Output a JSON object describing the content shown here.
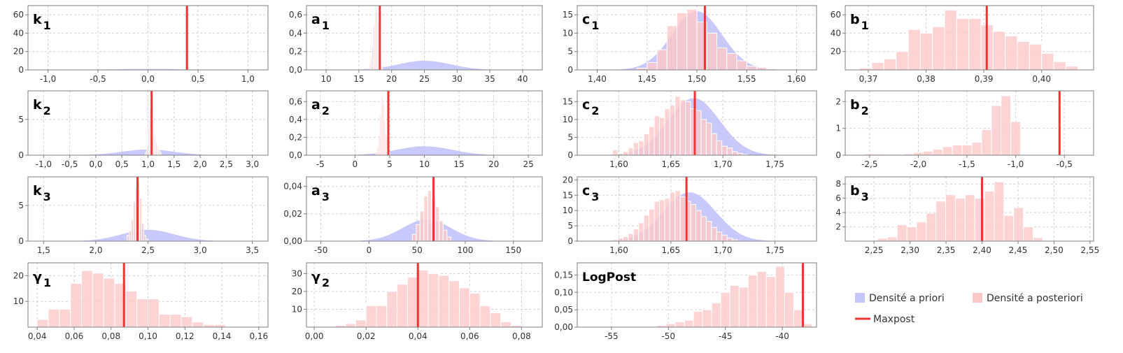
{
  "legend": {
    "prior_label": "Densité a priori",
    "posterior_label": "Densité a posteriori",
    "maxpost_label": "Maxpost",
    "colors": {
      "prior": "#c5c5fb",
      "posterior": "#fcc9c9",
      "maxpost": "#ee3333"
    }
  },
  "chart_data": [
    {
      "type": "bar",
      "title": "k",
      "subscript": "1",
      "xlim": [
        -1.2,
        1.2
      ],
      "ylim": [
        0,
        70
      ],
      "xticks": [
        -1.0,
        -0.5,
        0.0,
        0.5,
        1.0
      ],
      "xtick_labels": [
        "-1,0",
        "-0,5",
        "0,0",
        "0,5",
        "1,0"
      ],
      "yticks": [
        0,
        20,
        40,
        60
      ],
      "ytick_labels": [
        "0",
        "20",
        "40",
        "60"
      ],
      "prior": {
        "mean": 0.0,
        "sd": 0.4
      },
      "posterior": {
        "bin_start": 0.384,
        "bin_width": 0.004,
        "values": [
          120
        ]
      },
      "maxpost": 0.39
    },
    {
      "type": "bar",
      "title": "a",
      "subscript": "1",
      "xlim": [
        7,
        43
      ],
      "ylim": [
        0,
        0.7
      ],
      "xticks": [
        10,
        15,
        20,
        25,
        30,
        35,
        40
      ],
      "xtick_labels": [
        "10",
        "15",
        "20",
        "25",
        "30",
        "35",
        "40"
      ],
      "yticks": [
        0,
        0.2,
        0.4,
        0.6
      ],
      "ytick_labels": [
        "0,0",
        "0,2",
        "0,4",
        "0,6"
      ],
      "prior": {
        "mean": 25,
        "sd": 4
      },
      "posterior": {
        "bin_start": 16.6,
        "bin_width": 0.2,
        "values": [
          0.05,
          0.12,
          0.25,
          0.48,
          0.63,
          0.66,
          0.52,
          0.3,
          0.12,
          0.04
        ]
      },
      "maxpost": 18.2
    },
    {
      "type": "bar",
      "title": "c",
      "subscript": "1",
      "xlim": [
        1.38,
        1.62
      ],
      "ylim": [
        0,
        17.5
      ],
      "xticks": [
        1.4,
        1.45,
        1.5,
        1.55,
        1.6
      ],
      "xtick_labels": [
        "1,40",
        "1,45",
        "1,50",
        "1,55",
        "1,60"
      ],
      "yticks": [
        0,
        5,
        10,
        15
      ],
      "ytick_labels": [
        "0",
        "5",
        "10",
        "15"
      ],
      "prior": {
        "mean": 1.5,
        "sd": 0.025
      },
      "posterior": {
        "bin_start": 1.44,
        "bin_width": 0.01,
        "values": [
          0.5,
          2.0,
          5.5,
          12.0,
          15.5,
          16.5,
          13.0,
          10.0,
          6.0,
          4.5,
          2.5,
          1.0,
          0.7,
          0.3
        ]
      },
      "maxpost": 1.508
    },
    {
      "type": "bar",
      "title": "b",
      "subscript": "1",
      "xlim": [
        0.366,
        0.409
      ],
      "ylim": [
        0,
        70
      ],
      "xticks": [
        0.37,
        0.38,
        0.39,
        0.4
      ],
      "xtick_labels": [
        "0,37",
        "0,38",
        "0,39",
        "0,40"
      ],
      "yticks": [
        20,
        40,
        60
      ],
      "ytick_labels": [
        "20",
        "40",
        "60"
      ],
      "prior": null,
      "posterior": {
        "bin_start": 0.3685,
        "bin_width": 0.0021,
        "values": [
          2,
          8,
          12,
          20,
          44,
          40,
          47,
          65,
          56,
          56,
          49,
          42,
          37,
          31,
          28,
          18,
          9,
          4
        ]
      },
      "maxpost": 0.3905
    },
    {
      "type": "bar",
      "title": "k",
      "subscript": "2",
      "xlim": [
        -1.3,
        3.3
      ],
      "ylim": [
        0,
        9
      ],
      "xticks": [
        -1.0,
        -0.5,
        0.0,
        0.5,
        1.0,
        1.5,
        2.0,
        2.5,
        3.0
      ],
      "xtick_labels": [
        "-1,0",
        "-0,5",
        "0,0",
        "0,5",
        "1,0",
        "1,5",
        "2,0",
        "2,5",
        "3,0"
      ],
      "yticks": [
        0,
        5
      ],
      "ytick_labels": [
        "0",
        "5"
      ],
      "prior": {
        "mean": 1.0,
        "sd": 0.5
      },
      "posterior": {
        "bin_start": 0.95,
        "bin_width": 0.025,
        "values": [
          0.4,
          1.2,
          3.5,
          6.5,
          8.0,
          5.0,
          3.0,
          2.8,
          1.7,
          1.2,
          0.8,
          0.4
        ]
      },
      "maxpost": 1.07
    },
    {
      "type": "bar",
      "title": "a",
      "subscript": "2",
      "xlim": [
        -7,
        27
      ],
      "ylim": [
        0,
        0.72
      ],
      "xticks": [
        -5,
        0,
        5,
        10,
        15,
        20,
        25
      ],
      "xtick_labels": [
        "-5",
        "0",
        "5",
        "10",
        "15",
        "20",
        "25"
      ],
      "yticks": [
        0,
        0.2,
        0.4,
        0.6
      ],
      "ytick_labels": [
        "0,0",
        "0,2",
        "0,4",
        "0,6"
      ],
      "prior": {
        "mean": 10,
        "sd": 4
      },
      "posterior": {
        "bin_start": 3.0,
        "bin_width": 0.2,
        "values": [
          0.04,
          0.1,
          0.22,
          0.45,
          0.65,
          0.58,
          0.4,
          0.22,
          0.08,
          0.03
        ]
      },
      "maxpost": 4.8
    },
    {
      "type": "bar",
      "title": "c",
      "subscript": "2",
      "xlim": [
        1.56,
        1.79
      ],
      "ylim": [
        0,
        18
      ],
      "xticks": [
        1.6,
        1.65,
        1.7,
        1.75
      ],
      "xtick_labels": [
        "1,60",
        "1,65",
        "1,70",
        "1,75"
      ],
      "yticks": [
        0,
        5,
        10,
        15
      ],
      "ytick_labels": [
        "0",
        "5",
        "10",
        "15"
      ],
      "prior": {
        "mean": 1.672,
        "sd": 0.025
      },
      "posterior": {
        "bin_start": 1.594,
        "bin_width": 0.005,
        "values": [
          1.5,
          0.5,
          1.0,
          2.0,
          3.5,
          4.0,
          6.0,
          8.0,
          11.0,
          10.5,
          13.0,
          14.0,
          16.5,
          15.5,
          15.0,
          13.0,
          12.5,
          10.0,
          9.0,
          6.0,
          4.0,
          2.5,
          2.0,
          1.0,
          0.5,
          0.2
        ]
      },
      "maxpost": 1.673
    },
    {
      "type": "bar",
      "title": "b",
      "subscript": "2",
      "xlim": [
        -2.75,
        -0.2
      ],
      "ylim": [
        0,
        2.4
      ],
      "xticks": [
        -2.5,
        -2.0,
        -1.5,
        -1.0,
        -0.5
      ],
      "xtick_labels": [
        "-2,5",
        "-2,0",
        "-1,5",
        "-1,0",
        "-0,5"
      ],
      "yticks": [
        0,
        1,
        2
      ],
      "ytick_labels": [
        "0",
        "1",
        "2"
      ],
      "prior": null,
      "posterior": {
        "bin_start": -2.65,
        "bin_width": 0.1,
        "values": [
          0.01,
          0.05,
          0.05,
          0.03,
          0.03,
          0.05,
          0.1,
          0.15,
          0.22,
          0.32,
          0.38,
          0.38,
          0.48,
          0.95,
          1.85,
          2.22,
          1.25
        ]
      },
      "maxpost": -0.55
    },
    {
      "type": "bar",
      "title": "k",
      "subscript": "3",
      "xlim": [
        1.35,
        3.65
      ],
      "ylim": [
        0,
        9
      ],
      "xticks": [
        1.5,
        2.0,
        2.5,
        3.0,
        3.5
      ],
      "xtick_labels": [
        "1,5",
        "2,0",
        "2,5",
        "3,0",
        "3,5"
      ],
      "yticks": [
        0,
        5
      ],
      "ytick_labels": [
        "0",
        "5"
      ],
      "prior": {
        "mean": 2.5,
        "sd": 0.25
      },
      "posterior": {
        "bin_start": 2.3,
        "bin_width": 0.02,
        "values": [
          0.8,
          1.5,
          3.0,
          5.5,
          7.5,
          8.5,
          6.0,
          2.5,
          0.8,
          0.3
        ]
      },
      "maxpost": 2.4
    },
    {
      "type": "bar",
      "title": "a",
      "subscript": "3",
      "xlim": [
        -65,
        180
      ],
      "ylim": [
        0,
        0.047
      ],
      "xticks": [
        -50,
        0,
        50,
        100,
        150
      ],
      "xtick_labels": [
        "-50",
        "0",
        "50",
        "100",
        "150"
      ],
      "yticks": [
        0,
        0.02,
        0.04
      ],
      "ytick_labels": [
        "0,00",
        "0,02",
        "0,04"
      ],
      "prior": {
        "mean": 60,
        "sd": 25
      },
      "posterior": {
        "bin_start": 45,
        "bin_width": 4,
        "values": [
          0.005,
          0.012,
          0.022,
          0.033,
          0.037,
          0.032,
          0.025,
          0.015,
          0.008,
          0.003
        ]
      },
      "maxpost": 67
    },
    {
      "type": "bar",
      "title": "c",
      "subscript": "3",
      "xlim": [
        1.56,
        1.79
      ],
      "ylim": [
        0,
        21
      ],
      "xticks": [
        1.6,
        1.65,
        1.7,
        1.75
      ],
      "xtick_labels": [
        "1,60",
        "1,65",
        "1,70",
        "1,75"
      ],
      "yticks": [
        0,
        5,
        10,
        15,
        20
      ],
      "ytick_labels": [
        "0",
        "5",
        "10",
        "15",
        "20"
      ],
      "prior": {
        "mean": 1.668,
        "sd": 0.025
      },
      "posterior": {
        "bin_start": 1.594,
        "bin_width": 0.005,
        "values": [
          0.5,
          1.0,
          1.5,
          2.5,
          4.0,
          6.0,
          8.5,
          10.5,
          13.0,
          13.5,
          14.0,
          16.0,
          16.5,
          14.5,
          13.0,
          12.0,
          10.0,
          8.0,
          6.5,
          4.5,
          3.0,
          2.0,
          1.0,
          0.5
        ]
      },
      "maxpost": 1.665
    },
    {
      "type": "bar",
      "title": "b",
      "subscript": "3",
      "xlim": [
        2.21,
        2.555
      ],
      "ylim": [
        0,
        9
      ],
      "xticks": [
        2.25,
        2.3,
        2.35,
        2.4,
        2.45,
        2.5,
        2.55
      ],
      "xtick_labels": [
        "2,25",
        "2,30",
        "2,35",
        "2,40",
        "2,45",
        "2,50",
        "2,55"
      ],
      "yticks": [
        2,
        4,
        6,
        8
      ],
      "ytick_labels": [
        "2",
        "4",
        "6",
        "8"
      ],
      "prior": null,
      "posterior": {
        "bin_start": 2.255,
        "bin_width": 0.0135,
        "values": [
          0.4,
          0.6,
          2.3,
          2.0,
          2.7,
          3.9,
          5.6,
          6.5,
          6.0,
          6.5,
          6.0,
          7.0,
          8.3,
          3.6,
          4.7,
          2.0,
          0.5
        ]
      },
      "maxpost": 2.4
    },
    {
      "type": "bar",
      "title": "γ",
      "subscript": "1",
      "xlim": [
        0.035,
        0.165
      ],
      "ylim": [
        0,
        25
      ],
      "xticks": [
        0.04,
        0.06,
        0.08,
        0.1,
        0.12,
        0.14,
        0.16
      ],
      "xtick_labels": [
        "0,04",
        "0,06",
        "0,08",
        "0,10",
        "0,12",
        "0,14",
        "0,16"
      ],
      "yticks": [
        10,
        20
      ],
      "ytick_labels": [
        "10",
        "20"
      ],
      "prior": null,
      "posterior": {
        "bin_start": 0.04,
        "bin_width": 0.006,
        "values": [
          3,
          7,
          7,
          17,
          22,
          21,
          19,
          17,
          14,
          11,
          11,
          5,
          5,
          4,
          2,
          1,
          1
        ]
      },
      "maxpost": 0.087
    },
    {
      "type": "bar",
      "title": "γ",
      "subscript": "2",
      "xlim": [
        -0.003,
        0.088
      ],
      "ylim": [
        0,
        36
      ],
      "xticks": [
        0.0,
        0.02,
        0.04,
        0.06,
        0.08
      ],
      "xtick_labels": [
        "0,00",
        "0,02",
        "0,04",
        "0,06",
        "0,08"
      ],
      "yticks": [
        10,
        20,
        30
      ],
      "ytick_labels": [
        "10",
        "20",
        "30"
      ],
      "prior": null,
      "posterior": {
        "bin_start": 0.008,
        "bin_width": 0.004,
        "values": [
          1,
          2,
          4,
          12,
          12,
          20,
          24,
          28,
          32,
          30,
          29,
          26,
          22,
          19,
          12,
          8,
          3,
          1
        ]
      },
      "maxpost": 0.04
    },
    {
      "type": "bar",
      "title": "LogPost",
      "subscript": "",
      "xlim": [
        -58,
        -37
      ],
      "ylim": [
        0,
        0.185
      ],
      "xticks": [
        -55,
        -50,
        -45,
        -40
      ],
      "xtick_labels": [
        "-55",
        "-50",
        "-45",
        "-40"
      ],
      "yticks": [
        0,
        0.05,
        0.1,
        0.15
      ],
      "ytick_labels": [
        "0,00",
        "0,05",
        "0,10",
        "0,15"
      ],
      "prior": null,
      "posterior": {
        "bin_start": -51,
        "bin_width": 0.8,
        "values": [
          0.005,
          0.01,
          0.015,
          0.02,
          0.045,
          0.05,
          0.07,
          0.1,
          0.12,
          0.115,
          0.15,
          0.16,
          0.145,
          0.175,
          0.1,
          0.05,
          0.01
        ]
      },
      "maxpost": -38.2
    }
  ]
}
